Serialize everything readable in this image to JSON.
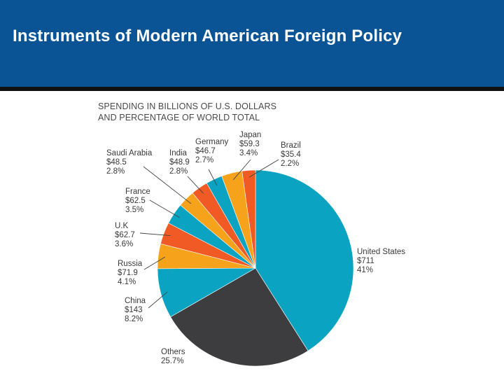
{
  "header": {
    "title": "Instruments of Modern American Foreign Policy"
  },
  "colors": {
    "header_bg": "#0a5496",
    "teal": "#0aa3c2",
    "orange": "#f15a24",
    "yellow": "#f7a21b",
    "dark": "#3d3d3f"
  },
  "chart_data": {
    "type": "pie",
    "title_lines": [
      "SPENDING IN BILLIONS OF U.S. DOLLARS",
      "AND PERCENTAGE OF WORLD TOTAL"
    ],
    "slices": [
      {
        "label": "United States",
        "value": "$711",
        "percent": "41%",
        "share": 41,
        "color": "#0aa3c2"
      },
      {
        "label": "Others",
        "value": "",
        "percent": "25.7%",
        "share": 25.7,
        "color": "#3d3d3f"
      },
      {
        "label": "China",
        "value": "$143",
        "percent": "8.2%",
        "share": 8.2,
        "color": "#0aa3c2"
      },
      {
        "label": "Russia",
        "value": "$71.9",
        "percent": "4.1%",
        "share": 4.1,
        "color": "#f7a21b"
      },
      {
        "label": "U.K",
        "value": "$62.7",
        "percent": "3.6%",
        "share": 3.6,
        "color": "#f15a24"
      },
      {
        "label": "France",
        "value": "$62.5",
        "percent": "3.5%",
        "share": 3.5,
        "color": "#0aa3c2"
      },
      {
        "label": "Saudi Arabia",
        "value": "$48.5",
        "percent": "2.8%",
        "share": 2.8,
        "color": "#f7a21b"
      },
      {
        "label": "India",
        "value": "$48.9",
        "percent": "2.8%",
        "share": 2.8,
        "color": "#f15a24"
      },
      {
        "label": "Germany",
        "value": "$46.7",
        "percent": "2.7%",
        "share": 2.7,
        "color": "#0aa3c2"
      },
      {
        "label": "Japan",
        "value": "$59.3",
        "percent": "3.4%",
        "share": 3.4,
        "color": "#f7a21b"
      },
      {
        "label": "Brazil",
        "value": "$35.4",
        "percent": "2.2%",
        "share": 2.2,
        "color": "#f15a24"
      }
    ]
  }
}
